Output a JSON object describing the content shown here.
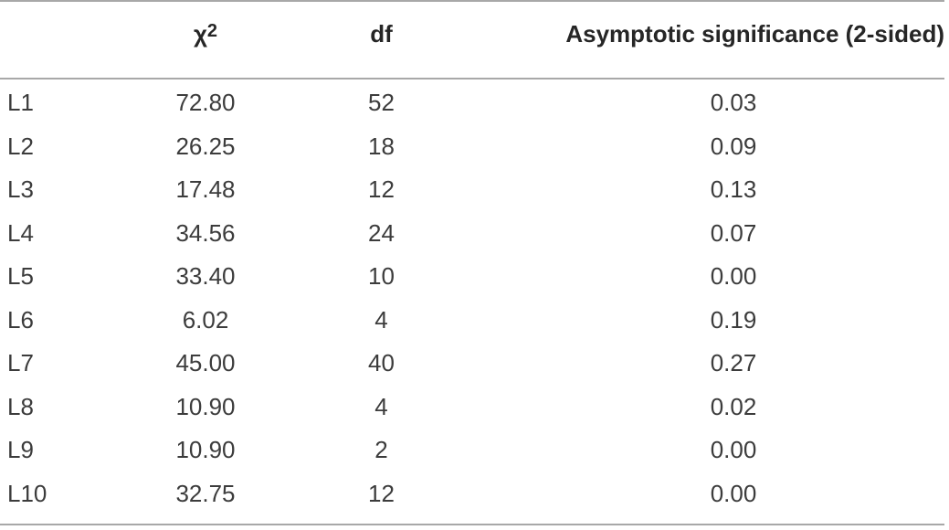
{
  "table": {
    "headers": {
      "label": "",
      "chi_square_symbol": "χ",
      "chi_square_superscript": "2",
      "df": "df",
      "significance": "Asymptotic significance (2-sided)"
    },
    "rows": [
      {
        "label": "L1",
        "chi_square": "72.80",
        "df": "52",
        "significance": "0.03"
      },
      {
        "label": "L2",
        "chi_square": "26.25",
        "df": "18",
        "significance": "0.09"
      },
      {
        "label": "L3",
        "chi_square": "17.48",
        "df": "12",
        "significance": "0.13"
      },
      {
        "label": "L4",
        "chi_square": "34.56",
        "df": "24",
        "significance": "0.07"
      },
      {
        "label": "L5",
        "chi_square": "33.40",
        "df": "10",
        "significance": "0.00"
      },
      {
        "label": "L6",
        "chi_square": "6.02",
        "df": "4",
        "significance": "0.19"
      },
      {
        "label": "L7",
        "chi_square": "45.00",
        "df": "40",
        "significance": "0.27"
      },
      {
        "label": "L8",
        "chi_square": "10.90",
        "df": "4",
        "significance": "0.02"
      },
      {
        "label": "L9",
        "chi_square": "10.90",
        "df": "2",
        "significance": "0.00"
      },
      {
        "label": "L10",
        "chi_square": "32.75",
        "df": "12",
        "significance": "0.00"
      }
    ]
  }
}
